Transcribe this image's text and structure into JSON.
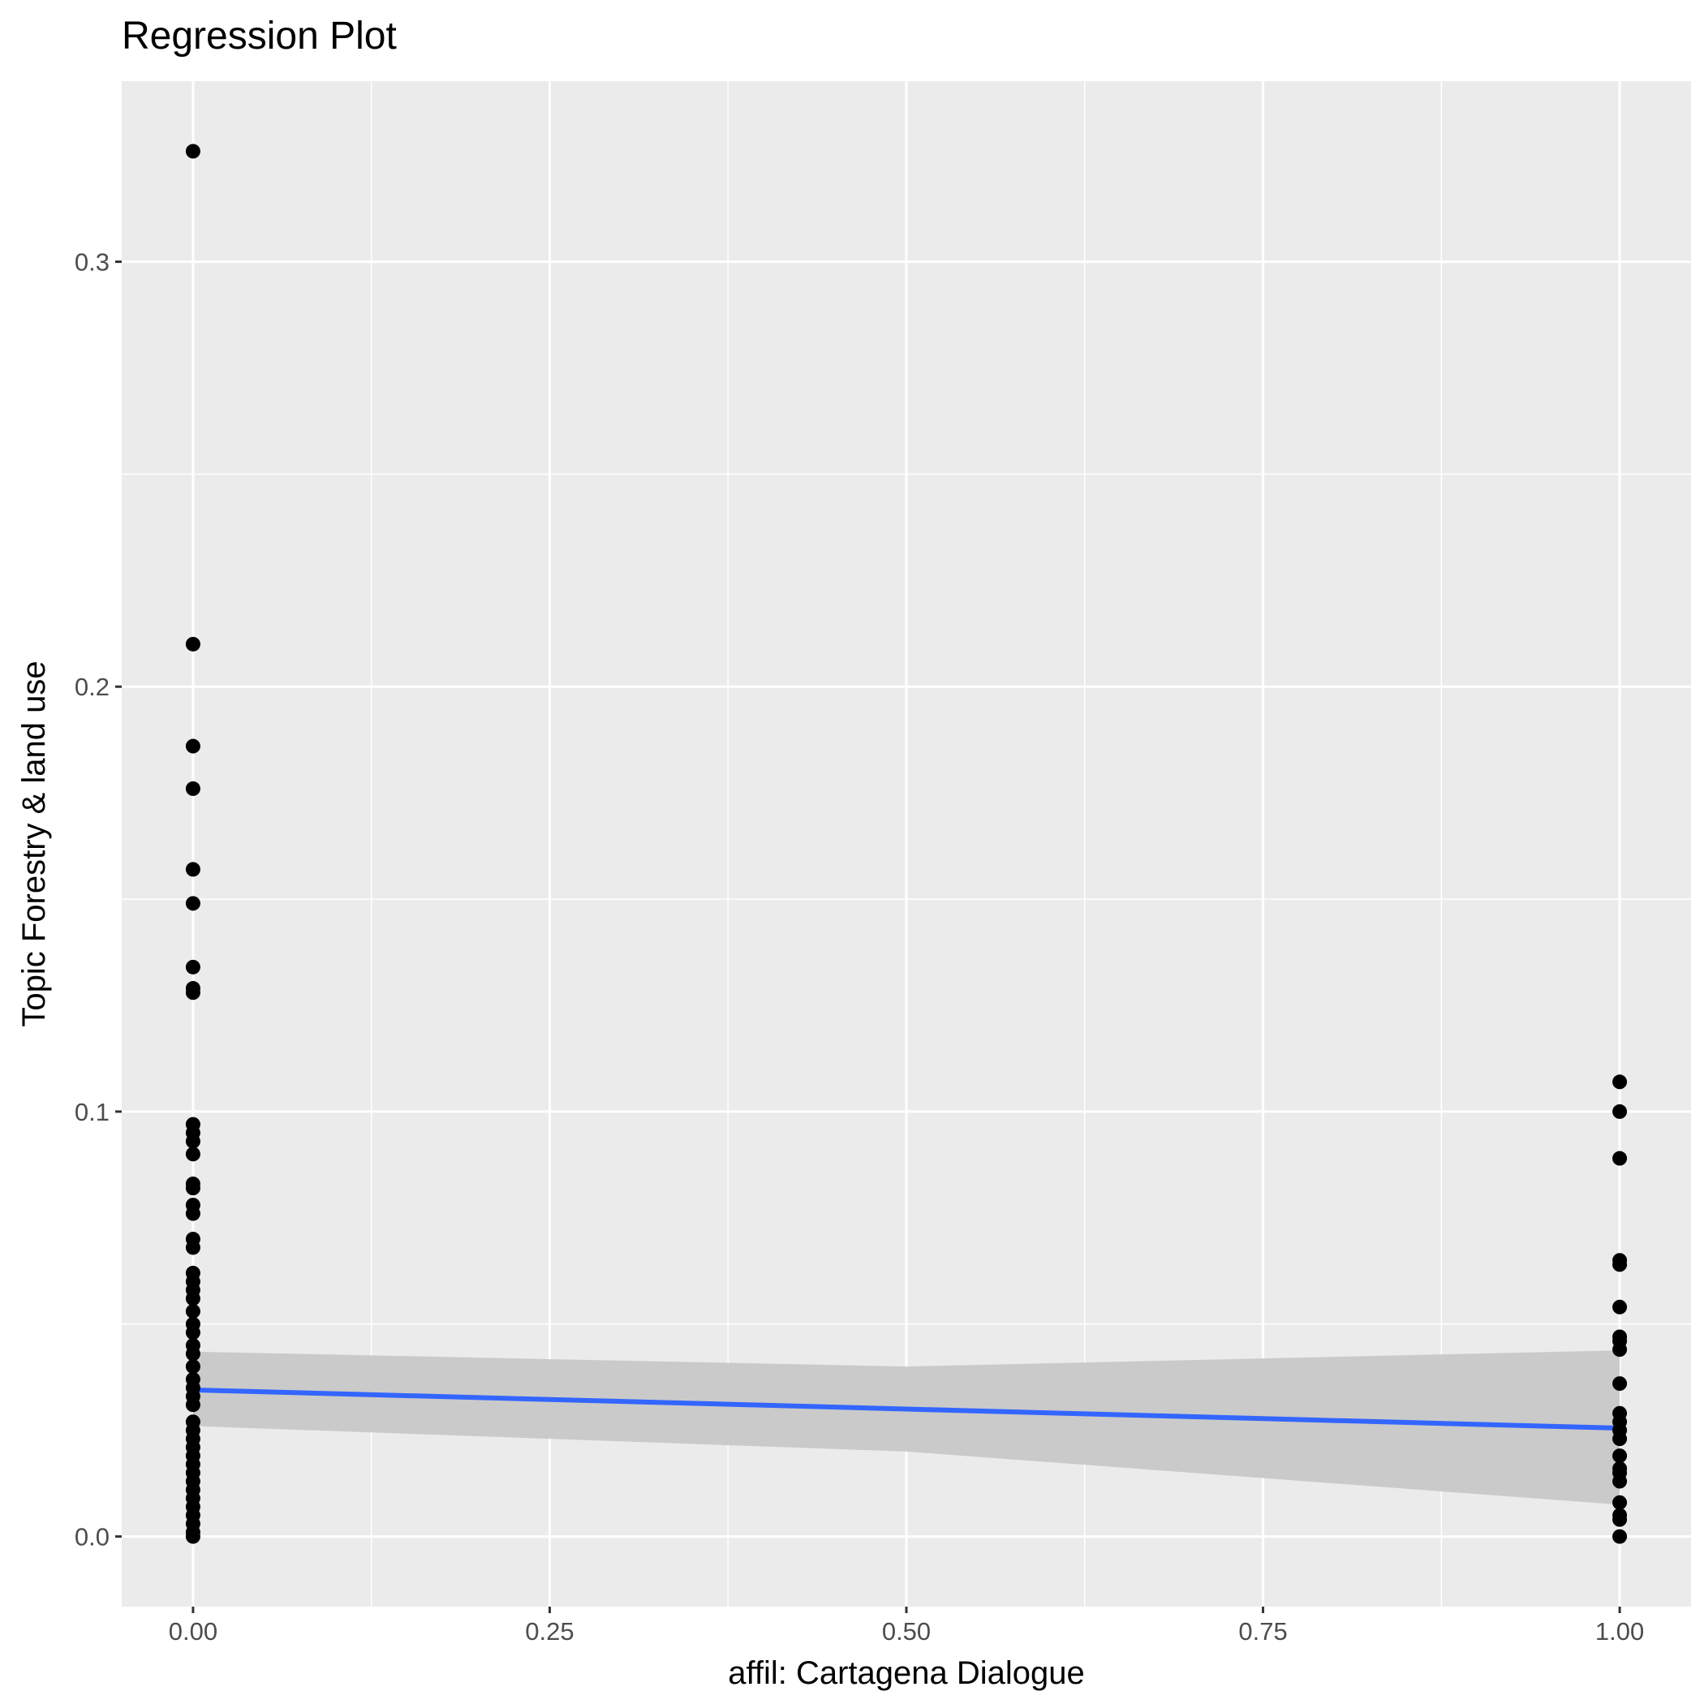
{
  "chart_data": {
    "type": "scatter",
    "title": "Regression Plot",
    "xlabel": "affil: Cartagena Dialogue",
    "ylabel": "Topic Forestry & land use",
    "xlim": [
      -0.05,
      1.05
    ],
    "ylim": [
      -0.0165,
      0.3425
    ],
    "x_ticks": [
      {
        "value": 0,
        "label": "0.00"
      },
      {
        "value": 0.25,
        "label": "0.25"
      },
      {
        "value": 0.5,
        "label": "0.50"
      },
      {
        "value": 0.75,
        "label": "0.75"
      },
      {
        "value": 1,
        "label": "1.00"
      }
    ],
    "y_ticks": [
      {
        "value": 0,
        "label": "0.0"
      },
      {
        "value": 0.1,
        "label": "0.1"
      },
      {
        "value": 0.2,
        "label": "0.2"
      },
      {
        "value": 0.3,
        "label": "0.3"
      }
    ],
    "grid": true,
    "points": {
      "x0_y": [
        0.326,
        0.21,
        0.186,
        0.176,
        0.157,
        0.149,
        0.134,
        0.129,
        0.128,
        0.097,
        0.095,
        0.093,
        0.09,
        0.083,
        0.082,
        0.078,
        0.076,
        0.07,
        0.068,
        0.062,
        0.06,
        0.058,
        0.056,
        0.053,
        0.05,
        0.048,
        0.045,
        0.043,
        0.04,
        0.037,
        0.035,
        0.033,
        0.031,
        0.027,
        0.025,
        0.023,
        0.021,
        0.019,
        0.017,
        0.015,
        0.013,
        0.011,
        0.009,
        0.007,
        0.005,
        0.003,
        0.001,
        0.0
      ],
      "x1_y": [
        0.107,
        0.1,
        0.089,
        0.065,
        0.064,
        0.054,
        0.047,
        0.046,
        0.044,
        0.036,
        0.029,
        0.027,
        0.025,
        0.023,
        0.019,
        0.016,
        0.015,
        0.013,
        0.008,
        0.005,
        0.004,
        0.0
      ]
    },
    "regression": {
      "x": [
        0,
        1
      ],
      "y": [
        0.0345,
        0.0255
      ],
      "ci_x": [
        0,
        0.5,
        1
      ],
      "ci_lower": [
        0.026,
        0.02,
        0.0075
      ],
      "ci_upper": [
        0.0435,
        0.04,
        0.0438
      ]
    },
    "colors": {
      "panel": "#ebebeb",
      "grid": "#ffffff",
      "point": "#000000",
      "line": "#3366ff",
      "ribbon": "#c8c8c8"
    }
  }
}
